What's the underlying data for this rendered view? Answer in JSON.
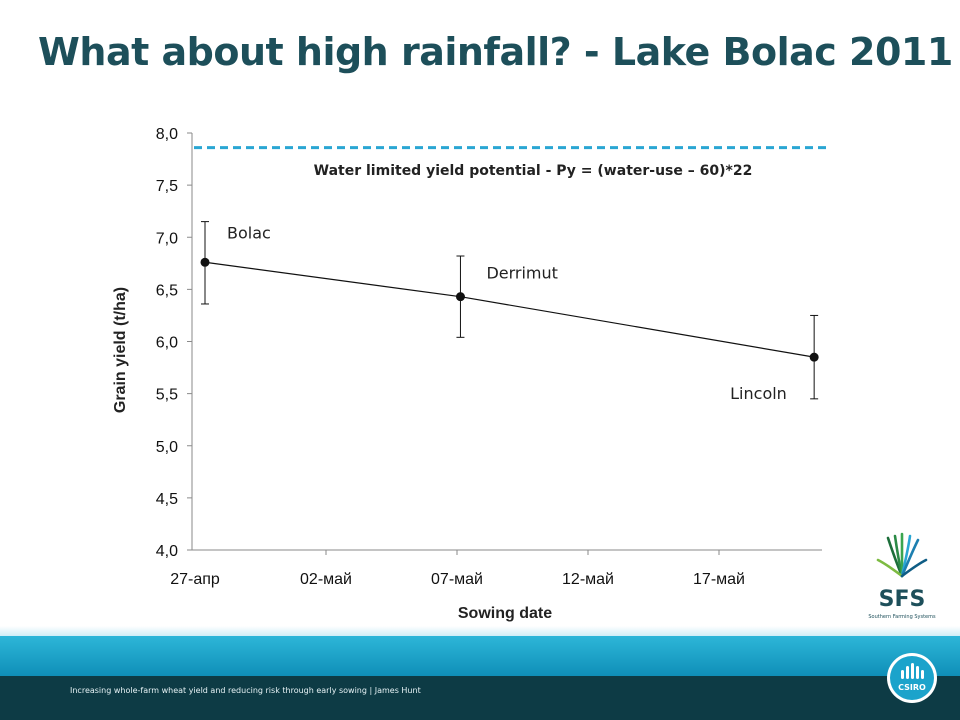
{
  "slide": {
    "title": "What about high rainfall? - Lake Bolac 2011",
    "footer": "Increasing whole-farm wheat yield and reducing risk through early sowing | James Hunt",
    "colors": {
      "title": "#1d4f5a",
      "reference_line": "#2aa6d3",
      "footer_band": "#1ba3cb",
      "footer_dark": "#0d3b45"
    }
  },
  "logos": {
    "sfs": {
      "text": "SFS",
      "subtext": "Southern Farming Systems"
    },
    "csiro": {
      "text": "CSIRO"
    }
  },
  "chart_data": {
    "type": "line",
    "xlabel": "Sowing date",
    "ylabel": "Grain yield (t/ha)",
    "ylim": [
      4.0,
      8.0
    ],
    "yticks": [
      "4,0",
      "4,5",
      "5,0",
      "5,5",
      "6,0",
      "6,5",
      "7,0",
      "7,5",
      "8,0"
    ],
    "xticks": [
      "27-апр",
      "02-май",
      "07-май",
      "12-май",
      "17-май"
    ],
    "grid": false,
    "series": [
      {
        "x_index": [
          0.0,
          1.95,
          4.65
        ],
        "values": [
          6.76,
          6.43,
          5.85
        ],
        "error_low": [
          6.36,
          6.04,
          5.45
        ],
        "error_high": [
          7.15,
          6.82,
          6.25
        ],
        "labels": [
          "Bolac",
          "Derrimut",
          "Lincoln"
        ]
      }
    ],
    "reference_line": {
      "value": 7.86,
      "label": "Water limited yield potential  - Py = (water-use – 60)*22"
    }
  }
}
